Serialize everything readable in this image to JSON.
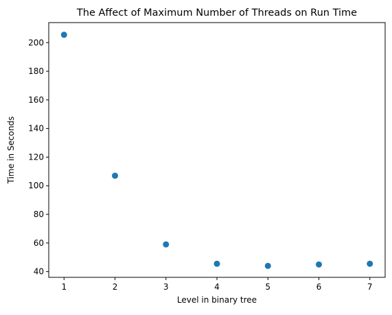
{
  "chart_data": {
    "type": "scatter",
    "title": "The Affect of Maximum Number of Threads on Run Time",
    "xlabel": "Level in binary tree",
    "ylabel": "Time in Seconds",
    "x": [
      1,
      2,
      3,
      4,
      5,
      6,
      7
    ],
    "y": [
      205.5,
      107,
      59,
      45.5,
      44,
      45,
      45.5
    ],
    "xticks": [
      1,
      2,
      3,
      4,
      5,
      6,
      7
    ],
    "yticks": [
      40,
      60,
      80,
      100,
      120,
      140,
      160,
      180,
      200
    ],
    "xlim": [
      0.7,
      7.3
    ],
    "ylim": [
      36,
      214
    ],
    "marker_color": "#1f77b4",
    "grid": false,
    "legend": "none"
  }
}
